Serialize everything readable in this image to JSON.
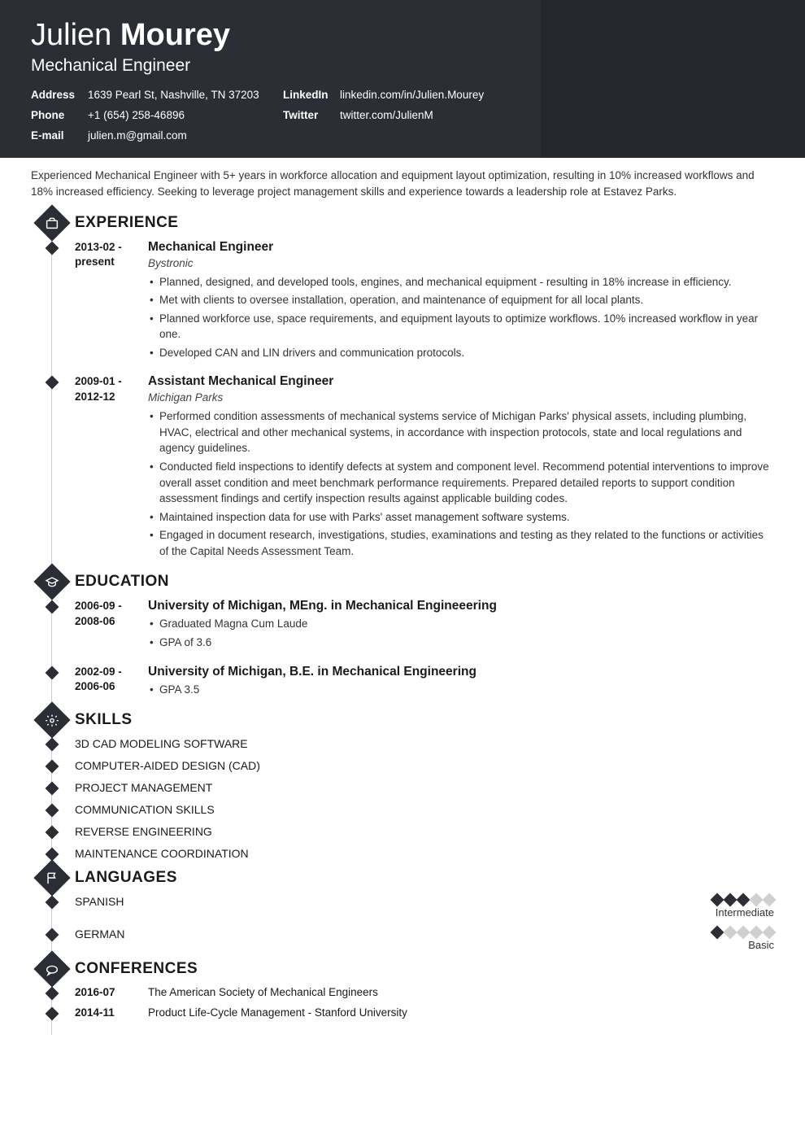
{
  "header": {
    "first_name": "Julien",
    "last_name": "Mourey",
    "title": "Mechanical Engineer",
    "contacts": [
      {
        "label": "Address",
        "value": "1639 Pearl St, Nashville, TN 37203"
      },
      {
        "label": "LinkedIn",
        "value": "linkedin.com/in/Julien.Mourey"
      },
      {
        "label": "Phone",
        "value": "+1 (654) 258-46896"
      },
      {
        "label": "Twitter",
        "value": "twitter.com/JulienM"
      },
      {
        "label": "E-mail",
        "value": "julien.m@gmail.com"
      }
    ]
  },
  "summary": "Experienced Mechanical Engineer with 5+ years in workforce allocation and equipment layout optimization, resulting in 10% increased workflows and 18% increased efficiency. Seeking to leverage project management skills and experience towards a leadership role at Estavez Parks.",
  "sections": {
    "experience": {
      "title": "EXPERIENCE",
      "entries": [
        {
          "date": "2013-02 - present",
          "title": "Mechanical Engineer",
          "subtitle": "Bystronic",
          "bullets": [
            "Planned, designed, and developed tools, engines, and mechanical equipment - resulting in 18% increase in efficiency.",
            "Met with clients to oversee installation, operation, and maintenance of equipment for all local plants.",
            "Planned workforce use, space requirements, and equipment layouts to optimize workflows. 10% increased workflow in year one.",
            "Developed CAN and LIN drivers and communication protocols."
          ]
        },
        {
          "date": "2009-01 - 2012-12",
          "title": "Assistant Mechanical Engineer",
          "subtitle": "Michigan Parks",
          "bullets": [
            "Performed condition assessments of mechanical systems service of Michigan Parks' physical assets, including plumbing, HVAC, electrical and other mechanical systems, in accordance with inspection protocols, state and local regulations and agency guidelines.",
            "Conducted field inspections to identify defects at system and component level. Recommend potential interventions to improve overall asset condition and meet benchmark performance requirements. Prepared detailed reports to support condition assessment findings and certify inspection results against applicable building codes.",
            "Maintained inspection data for use with Parks' asset management software systems.",
            "Engaged in document research, investigations, studies, examinations and testing as they related to the functions or activities of the Capital Needs Assessment Team."
          ]
        }
      ]
    },
    "education": {
      "title": "EDUCATION",
      "entries": [
        {
          "date": "2006-09 - 2008-06",
          "title": "University of Michigan, MEng. in Mechanical Engineeering",
          "bullets": [
            "Graduated Magna Cum Laude",
            "GPA of 3.6"
          ]
        },
        {
          "date": "2002-09 - 2006-06",
          "title": "University of Michigan, B.E. in Mechanical Engineering",
          "bullets": [
            "GPA 3.5"
          ]
        }
      ]
    },
    "skills": {
      "title": "SKILLS",
      "items": [
        "3D CAD MODELING SOFTWARE",
        "COMPUTER-AIDED DESIGN (CAD)",
        "PROJECT MANAGEMENT",
        "COMMUNICATION SKILLS",
        "REVERSE ENGINEERING",
        "MAINTENANCE COORDINATION"
      ]
    },
    "languages": {
      "title": "LANGUAGES",
      "items": [
        {
          "name": "SPANISH",
          "level_label": "Intermediate",
          "filled": 3,
          "total": 5
        },
        {
          "name": "GERMAN",
          "level_label": "Basic",
          "filled": 1,
          "total": 5
        }
      ]
    },
    "conferences": {
      "title": "CONFERENCES",
      "entries": [
        {
          "date": "2016-07",
          "text": "The American Society of Mechanical Engineers"
        },
        {
          "date": "2014-11",
          "text": "Product Life-Cycle Management - Stanford University"
        }
      ]
    }
  },
  "colors": {
    "header_bg": "#2c2e35",
    "header_bg_right": "#25272d",
    "accent": "#2c2e35",
    "text": "#1a1a1a",
    "muted": "#d0d0d0"
  }
}
